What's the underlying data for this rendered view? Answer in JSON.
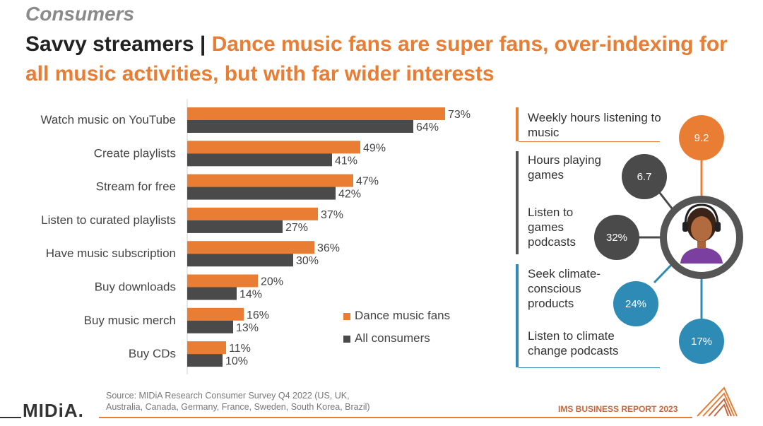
{
  "section_label": "Consumers",
  "headline": {
    "prefix": "Savvy streamers | ",
    "accent": "Dance music fans are super fans, over-indexing for all music activities, but with far wider interests"
  },
  "colors": {
    "dance": "#e87d33",
    "all": "#4a4a4a",
    "blue": "#2e8bb6",
    "grey_circle": "#4a4a4a",
    "panel_orange": "#e87d33",
    "panel_grey": "#555555",
    "panel_blue": "#2e8bb6"
  },
  "chart_data": {
    "type": "bar",
    "orientation": "horizontal",
    "categories": [
      "Watch music on YouTube",
      "Create playlists",
      "Stream for free",
      "Listen to curated playlists",
      "Have music subscription",
      "Buy downloads",
      "Buy music merch",
      "Buy CDs"
    ],
    "series": [
      {
        "name": "Dance music fans",
        "values": [
          73,
          49,
          47,
          37,
          36,
          20,
          16,
          11
        ]
      },
      {
        "name": "All consumers",
        "values": [
          64,
          41,
          42,
          27,
          30,
          14,
          13,
          10
        ]
      }
    ],
    "value_suffix": "%",
    "xlim": [
      0,
      80
    ],
    "grid": false,
    "legend_position": "bottom-right"
  },
  "side_panel": {
    "items": [
      {
        "label": "Weekly hours listening to music",
        "value": "9.2",
        "color": "orange"
      },
      {
        "label": "Hours playing games",
        "value": "6.7",
        "color": "grey"
      },
      {
        "label": "Listen to games podcasts",
        "value": "32%",
        "color": "grey"
      },
      {
        "label": "Seek climate-conscious products",
        "value": "24%",
        "color": "blue"
      },
      {
        "label": "Listen to climate change podcasts",
        "value": "17%",
        "color": "blue"
      }
    ],
    "avatar": "headphones-listener-avatar"
  },
  "source": {
    "line1": "Source: MIDiA Research Consumer Survey Q4 2022 (US, UK,",
    "line2": "Australia, Canada, Germany, France, Sweden, South Korea, Brazil)"
  },
  "logo_text": "MIDiA.",
  "report_title": "IMS BUSINESS REPORT 2023"
}
